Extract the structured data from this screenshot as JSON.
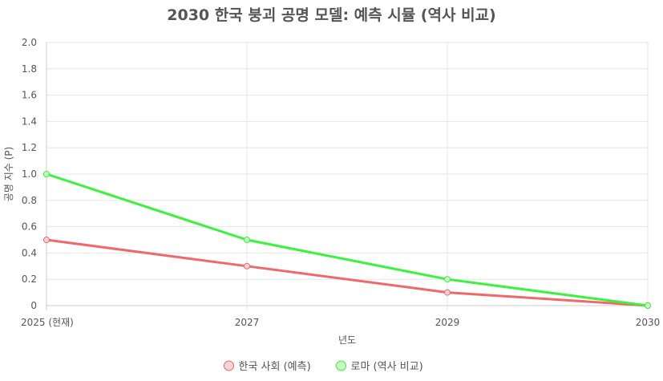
{
  "chart_data": {
    "type": "line",
    "title": "2030 한국 붕괴 공명 모델: 예측 시뮬 (역사 비교)",
    "xlabel": "년도",
    "ylabel": "공명 지수 (P)",
    "categories": [
      "2025 (현재)",
      "2027",
      "2029",
      "2030"
    ],
    "ylim": [
      0,
      2.0
    ],
    "yticks": [
      "0",
      "0.2",
      "0.4",
      "0.6",
      "0.8",
      "1.0",
      "1.2",
      "1.4",
      "1.6",
      "1.8",
      "2.0"
    ],
    "grid": true,
    "legend_position": "bottom",
    "series": [
      {
        "name": "한국 사회 (예측)",
        "values": [
          0.5,
          0.3,
          0.1,
          0.0
        ],
        "color": "#f0686a",
        "fill": "#f9d3d3"
      },
      {
        "name": "로마 (역사 비교)",
        "values": [
          1.0,
          0.5,
          0.2,
          0.0
        ],
        "color": "#3df23d",
        "fill": "#c8f7c8"
      }
    ]
  }
}
